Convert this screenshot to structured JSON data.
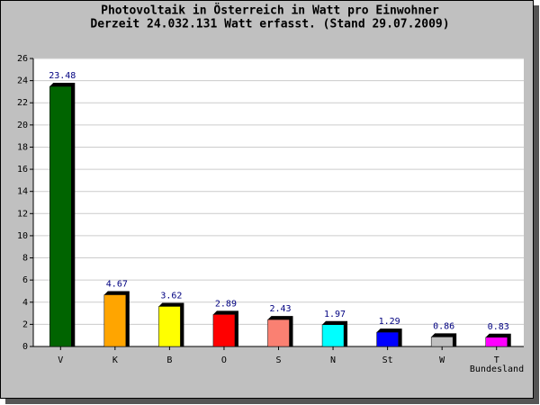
{
  "chart_data": {
    "type": "bar",
    "title": "Photovoltaik in Österreich in Watt pro Einwohner",
    "subtitle": "Derzeit 24.032.131 Watt erfasst. (Stand 29.07.2009)",
    "x_label": "Bundesland",
    "categories": [
      "V",
      "K",
      "B",
      "O",
      "S",
      "N",
      "St",
      "W",
      "T"
    ],
    "values": [
      23.48,
      4.67,
      3.62,
      2.89,
      2.43,
      1.97,
      1.29,
      0.86,
      0.83
    ],
    "colors": [
      "#006400",
      "#ffa500",
      "#ffff00",
      "#ff0000",
      "#fa8072",
      "#00ffff",
      "#0000ff",
      "#c0c0c0",
      "#ff00ff"
    ],
    "ylim": [
      0,
      26
    ],
    "yticks": [
      0,
      2,
      4,
      6,
      8,
      10,
      12,
      14,
      16,
      18,
      20,
      22,
      24,
      26
    ],
    "grid": true
  }
}
